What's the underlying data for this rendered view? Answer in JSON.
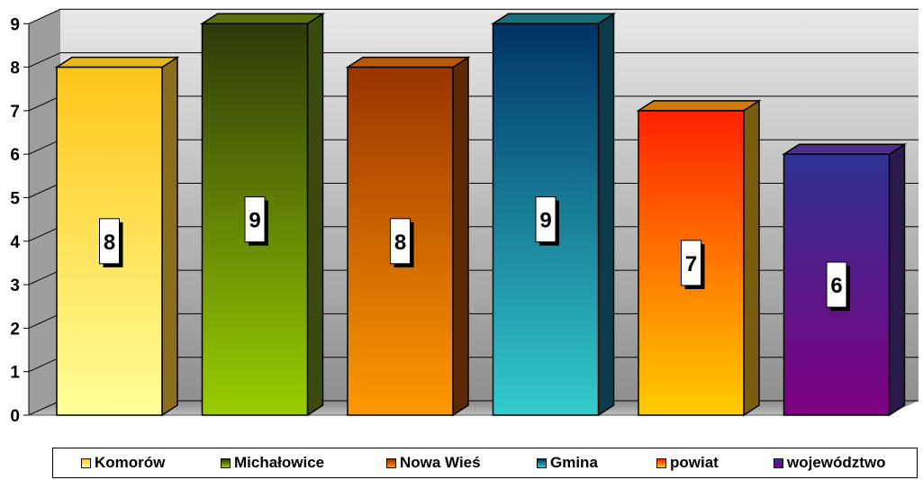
{
  "chart_data": {
    "type": "bar",
    "categories": [
      "Komorów",
      "Michałowice",
      "Nowa Wieś",
      "Gmina",
      "powiat",
      "województwo"
    ],
    "values": [
      8,
      9,
      8,
      9,
      7,
      6
    ],
    "data_labels": [
      "8",
      "9",
      "8",
      "9",
      "7",
      "6"
    ],
    "ylim": [
      0,
      9
    ],
    "yticks": [
      "0",
      "1",
      "2",
      "3",
      "4",
      "5",
      "6",
      "7",
      "8",
      "9"
    ],
    "grid": true,
    "style": "3d-column",
    "legend_position": "bottom",
    "colors": [
      {
        "top": "#ffc61a",
        "bottom": "#ffff99",
        "side": "#8a6e1c",
        "cap": "#e6b81e"
      },
      {
        "top": "#2e3a0a",
        "bottom": "#9acd00",
        "side": "#3d4a0f",
        "cap": "#5a6e12"
      },
      {
        "top": "#993300",
        "bottom": "#ff9900",
        "side": "#5a2a06",
        "cap": "#b85a0a"
      },
      {
        "top": "#003366",
        "bottom": "#33cccc",
        "side": "#0e3b4a",
        "cap": "#1b6e78"
      },
      {
        "top": "#ff2200",
        "bottom": "#ffcc00",
        "side": "#7a5d0c",
        "cap": "#d07a0a"
      },
      {
        "top": "#2e3192",
        "bottom": "#800080",
        "side": "#2a1a4a",
        "cap": "#4d2e8a"
      }
    ]
  }
}
